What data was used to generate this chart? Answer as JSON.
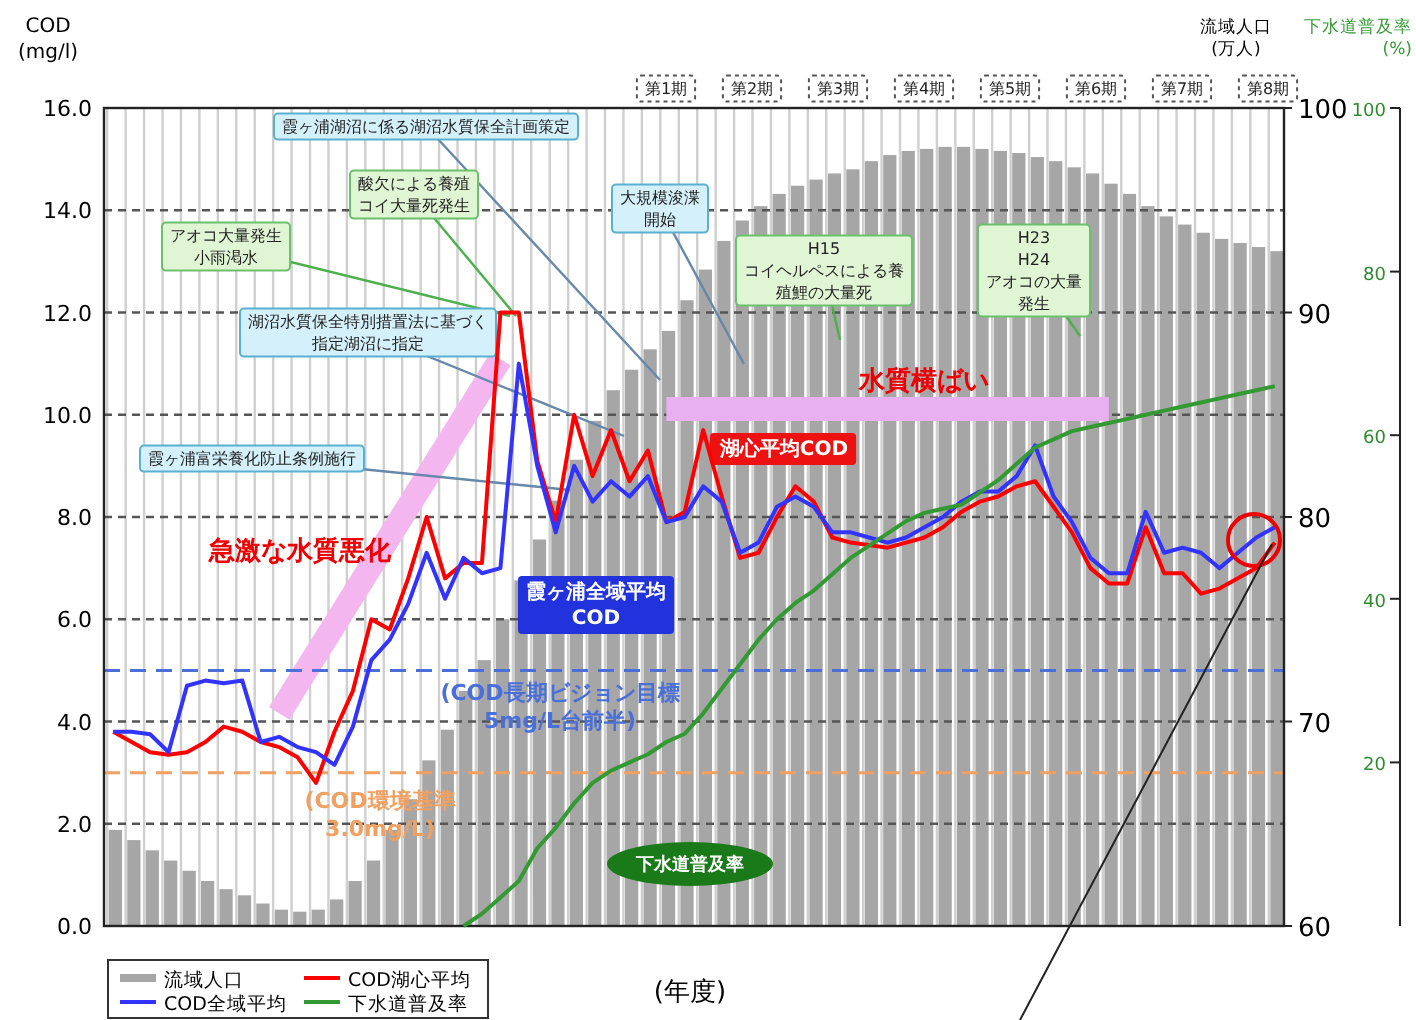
{
  "chart_data": {
    "type": "bar",
    "ylabel": "COD (mg/l)",
    "y2label": "流域人口 (万人)",
    "y3label": "下水道普及率 (%)",
    "xlabel": "(年度)",
    "categories": [
      null,
      null,
      null,
      null,
      null,
      null,
      null,
      null,
      null,
      null,
      null,
      null,
      null,
      null,
      null,
      null,
      null,
      null,
      null,
      null,
      null,
      null,
      null,
      null,
      null,
      null,
      null,
      null,
      null,
      null,
      null,
      null,
      null,
      null,
      null,
      null,
      null,
      null,
      null,
      null,
      null,
      null,
      null,
      null,
      null,
      null,
      null,
      null,
      null,
      null,
      null,
      null,
      null,
      null,
      null,
      null,
      null,
      null,
      null,
      null,
      null,
      null,
      null,
      null
    ],
    "ylim": [
      0,
      16
    ],
    "yticks": [
      {
        "value": 0,
        "label": "0.0"
      },
      {
        "value": 2,
        "label": "2.0"
      },
      {
        "value": 4,
        "label": "4.0"
      },
      {
        "value": 6,
        "label": "6.0"
      },
      {
        "value": 8,
        "label": "8.0"
      },
      {
        "value": 10,
        "label": "10.0"
      },
      {
        "value": 12,
        "label": "12.0"
      },
      {
        "value": 14,
        "label": "14.0"
      },
      {
        "value": 16,
        "label": "16.0"
      }
    ],
    "y2lim": [
      60,
      100
    ],
    "y2ticks": [
      60,
      70,
      80,
      90,
      100
    ],
    "y3lim": [
      0,
      100
    ],
    "y3ticks": [
      20,
      40,
      60,
      80,
      100
    ],
    "grid": "y",
    "legend": "bottom left",
    "series": [
      {
        "name": "流域人口",
        "axis": "y2",
        "color": "#a6a6a6",
        "values": [
          64.7,
          64.2,
          63.7,
          63.2,
          62.7,
          62.2,
          61.8,
          61.5,
          61.1,
          60.8,
          60.7,
          60.8,
          61.3,
          62.2,
          63.2,
          64.7,
          66.2,
          68.1,
          69.6,
          71.5,
          73.0,
          75.0,
          76.9,
          78.9,
          80.8,
          82.8,
          84.7,
          86.2,
          87.2,
          88.2,
          89.1,
          90.6,
          92.1,
          93.5,
          94.5,
          95.2,
          95.8,
          96.2,
          96.5,
          96.8,
          97.0,
          97.4,
          97.7,
          97.9,
          98.0,
          98.1,
          98.1,
          98.0,
          97.9,
          97.8,
          97.6,
          97.4,
          97.1,
          96.8,
          96.3,
          95.8,
          95.2,
          94.7,
          94.3,
          93.9,
          93.6,
          93.4,
          93.2,
          93.0
        ]
      },
      {
        "name": "COD湖心平均",
        "type": "line",
        "color": "#ff0000",
        "values": [
          3.8,
          3.6,
          3.4,
          3.35,
          3.4,
          3.6,
          3.9,
          3.8,
          3.6,
          3.5,
          3.3,
          2.8,
          3.8,
          4.6,
          6.0,
          5.8,
          6.8,
          8.0,
          6.8,
          7.1,
          7.1,
          12.0,
          12.0,
          9.1,
          7.9,
          10.0,
          8.8,
          9.7,
          8.7,
          9.3,
          7.9,
          8.1,
          9.7,
          8.4,
          7.2,
          7.3,
          8.0,
          8.6,
          8.3,
          7.6,
          7.5,
          7.45,
          7.4,
          7.5,
          7.6,
          7.8,
          8.1,
          8.3,
          8.4,
          8.6,
          8.7,
          8.2,
          7.7,
          7.0,
          6.7,
          6.7,
          7.8,
          6.9,
          6.9,
          6.5,
          6.6,
          6.8,
          7.0,
          7.5
        ]
      },
      {
        "name": "COD全域平均",
        "type": "line",
        "color": "#3333ff",
        "values": [
          3.8,
          3.8,
          3.75,
          3.4,
          4.7,
          4.8,
          4.75,
          4.8,
          3.6,
          3.7,
          3.5,
          3.4,
          3.15,
          3.9,
          5.2,
          5.6,
          6.3,
          7.3,
          6.4,
          7.2,
          6.9,
          7.0,
          11.0,
          9.0,
          7.7,
          9.0,
          8.3,
          8.7,
          8.4,
          8.8,
          7.9,
          8.0,
          8.6,
          8.3,
          7.3,
          7.5,
          8.2,
          8.4,
          8.2,
          7.7,
          7.7,
          7.6,
          7.5,
          7.6,
          7.8,
          8.0,
          8.3,
          8.5,
          8.5,
          8.8,
          9.4,
          8.4,
          7.9,
          7.2,
          6.9,
          6.9,
          8.1,
          7.3,
          7.4,
          7.3,
          7.0,
          7.3,
          7.6,
          7.8
        ]
      },
      {
        "type": "line",
        "color": "#f4b6ee",
        "values": [
          null,
          null,
          null,
          null,
          null,
          null,
          null,
          null,
          null,
          4.16,
          null,
          null,
          null,
          null,
          null,
          null,
          null,
          null,
          null,
          null,
          null,
          11.09,
          null,
          null,
          null,
          null,
          null,
          null,
          null,
          null,
          null,
          null,
          null,
          null,
          null,
          null,
          null,
          null,
          null,
          null,
          null,
          null,
          null,
          null,
          null,
          null,
          null,
          null,
          null,
          null,
          null,
          null,
          null,
          null,
          null,
          null,
          null,
          null,
          null,
          null,
          null,
          null,
          null,
          null
        ]
      },
      {
        "type": "line",
        "color": "#e8b0f0",
        "values": [
          null,
          null,
          null,
          null,
          null,
          null,
          null,
          null,
          null,
          null,
          null,
          null,
          null,
          null,
          null,
          null,
          null,
          null,
          null,
          null,
          null,
          null,
          null,
          null,
          null,
          null,
          null,
          null,
          null,
          null,
          10.11,
          null,
          null,
          null,
          null,
          null,
          null,
          null,
          null,
          null,
          null,
          null,
          null,
          null,
          null,
          null,
          null,
          null,
          null,
          null,
          null,
          null,
          null,
          null,
          10.11,
          null,
          null,
          null,
          null,
          null,
          null,
          null,
          null,
          null
        ]
      },
      {
        "name": "下水道普及率",
        "type": "line",
        "axis": "y3",
        "color": "#339933",
        "values": [
          null,
          null,
          null,
          null,
          null,
          null,
          null,
          null,
          null,
          null,
          null,
          null,
          null,
          null,
          null,
          null,
          null,
          null,
          null,
          0,
          1.5,
          3.5,
          5.5,
          9.5,
          12,
          15,
          17.5,
          19,
          20,
          21,
          22.5,
          23.5,
          26,
          29,
          32,
          35,
          37.5,
          39.5,
          41,
          43,
          45,
          46.5,
          48,
          49.5,
          50.5,
          51,
          51.5,
          53,
          54.5,
          56.5,
          58.5,
          59.5,
          60.5,
          61,
          61.5,
          62,
          62.5,
          63,
          63.5,
          64,
          64.5,
          65,
          65.5,
          66
        ]
      }
    ],
    "ref_lines": [
      {
        "axis": "y",
        "value": 5,
        "label": "(COD長期ビジョン目標 5mg/L台前半)",
        "color": "#4a6fd8",
        "line_style": "dashed"
      },
      {
        "axis": "y",
        "value": 3,
        "label": "(COD環境基準 3.0mg/L)",
        "color": "#f0a060",
        "line_style": "dashed"
      }
    ],
    "annotations": [
      "第1期",
      "第2期",
      "第3期",
      "第4期",
      "第5期",
      "第6期",
      "第7期",
      "第8期",
      "霞ヶ浦湖沼に係る湖沼水質保全計画策定",
      "酸欠による養殖コイ大量死発生",
      "アオコ大量発生小雨渇水",
      "湖沼水質保全特別措置法に基づく指定湖沼に指定",
      "霞ヶ浦富栄養化防止条例施行",
      "大規模浚渫開始",
      "H15 コイヘルペスによる養殖鯉の大量死",
      "H23 H24 アオコの大量発生",
      "急激な水質悪化",
      "水質横ばい",
      "湖心平均COD",
      "霞ヶ浦全域平均 COD",
      "下水道普及率"
    ]
  }
}
